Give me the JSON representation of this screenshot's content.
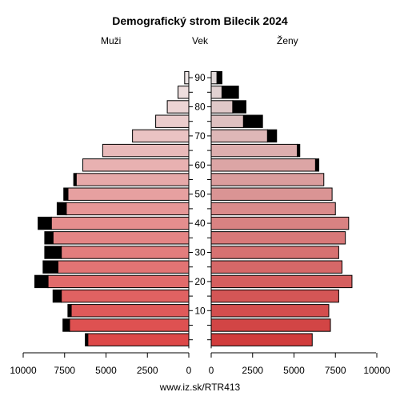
{
  "chart_data": {
    "type": "bar",
    "title": "Demografický strom Bilecik 2024",
    "left_label": "Muži",
    "center_label": "Vek",
    "right_label": "Ženy",
    "footer": "www.iz.sk/RTR413",
    "age_ticks": [
      "10",
      "20",
      "30",
      "40",
      "50",
      "60",
      "70",
      "80",
      "90"
    ],
    "axis_ticks_left": [
      "10000",
      "7500",
      "5000",
      "2500",
      "0"
    ],
    "axis_ticks_right": [
      "0",
      "2500",
      "5000",
      "7500",
      "10000"
    ],
    "xlim": [
      0,
      10000
    ],
    "age_groups": [
      "0-4",
      "5-9",
      "10-14",
      "15-19",
      "20-24",
      "25-29",
      "30-34",
      "35-39",
      "40-44",
      "45-49",
      "50-54",
      "55-59",
      "60-64",
      "65-69",
      "70-74",
      "75-79",
      "80-84",
      "85-89",
      "90+"
    ],
    "series": [
      {
        "name": "Muži",
        "values": [
          6100,
          7200,
          7100,
          7700,
          8500,
          7900,
          7700,
          8200,
          8300,
          7400,
          7300,
          6800,
          6400,
          5200,
          3400,
          2000,
          1300,
          650,
          250
        ]
      },
      {
        "name": "Muži (excess)",
        "values": [
          150,
          400,
          200,
          500,
          800,
          900,
          1000,
          500,
          800,
          550,
          250,
          150,
          0,
          0,
          0,
          0,
          0,
          0,
          0
        ]
      },
      {
        "name": "Ženy",
        "values": [
          6100,
          7200,
          7100,
          7700,
          8500,
          7900,
          7700,
          8100,
          8300,
          7500,
          7300,
          6800,
          6300,
          5200,
          3400,
          1950,
          1300,
          650,
          350
        ]
      },
      {
        "name": "Ženy (excess)",
        "values": [
          0,
          0,
          0,
          0,
          0,
          0,
          0,
          0,
          0,
          0,
          0,
          0,
          200,
          150,
          550,
          1150,
          800,
          1000,
          300
        ]
      }
    ],
    "colors": {
      "bar_bottom": "#dd4848",
      "bar_top": "#eee6e6",
      "excess": "#000000"
    }
  }
}
